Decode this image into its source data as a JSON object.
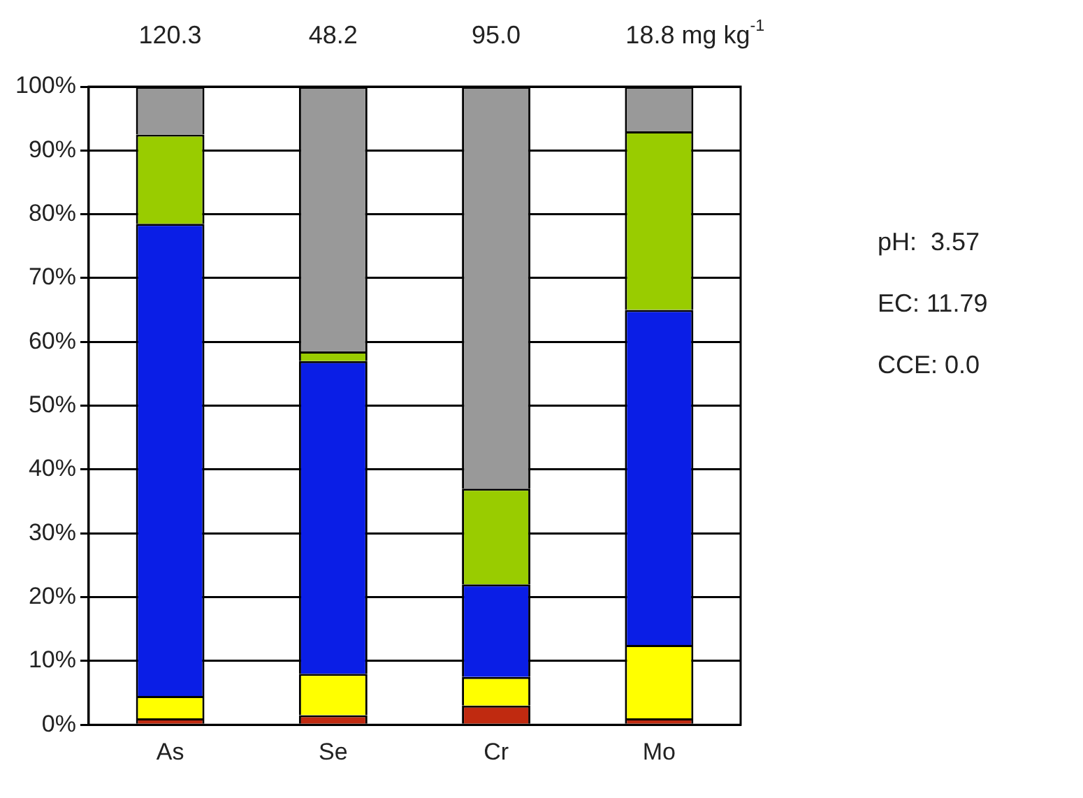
{
  "chart_data": {
    "type": "bar",
    "stacked": true,
    "categories": [
      "As",
      "Se",
      "Cr",
      "Mo"
    ],
    "series": [
      {
        "color": "#c02a10",
        "values": [
          1,
          1.5,
          3,
          1
        ]
      },
      {
        "color": "#ffff00",
        "values": [
          3.5,
          6.5,
          4.5,
          11.5
        ]
      },
      {
        "color": "#0a1ee6",
        "values": [
          74,
          49,
          14.5,
          52.5
        ]
      },
      {
        "color": "#99cc00",
        "values": [
          14,
          1.5,
          15,
          28
        ]
      },
      {
        "color": "#999999",
        "values": [
          7.5,
          41.5,
          63,
          7
        ]
      }
    ],
    "ylim": [
      0,
      100
    ],
    "yticks": [
      {
        "value": 0,
        "label": "0%"
      },
      {
        "value": 10,
        "label": "10%"
      },
      {
        "value": 20,
        "label": "20%"
      },
      {
        "value": 30,
        "label": "30%"
      },
      {
        "value": 40,
        "label": "40%"
      },
      {
        "value": 50,
        "label": "50%"
      },
      {
        "value": 60,
        "label": "60%"
      },
      {
        "value": 70,
        "label": "70%"
      },
      {
        "value": 80,
        "label": "80%"
      },
      {
        "value": 90,
        "label": "90%"
      },
      {
        "value": 100,
        "label": "100%"
      }
    ],
    "grid": "y",
    "legend": false,
    "annotations": [
      "120.3",
      "48.2",
      "95.0",
      "18.8 mg kg$^{-1}$",
      "pH:  3.57",
      "EC: 11.79",
      "CCE: 0.0"
    ]
  }
}
